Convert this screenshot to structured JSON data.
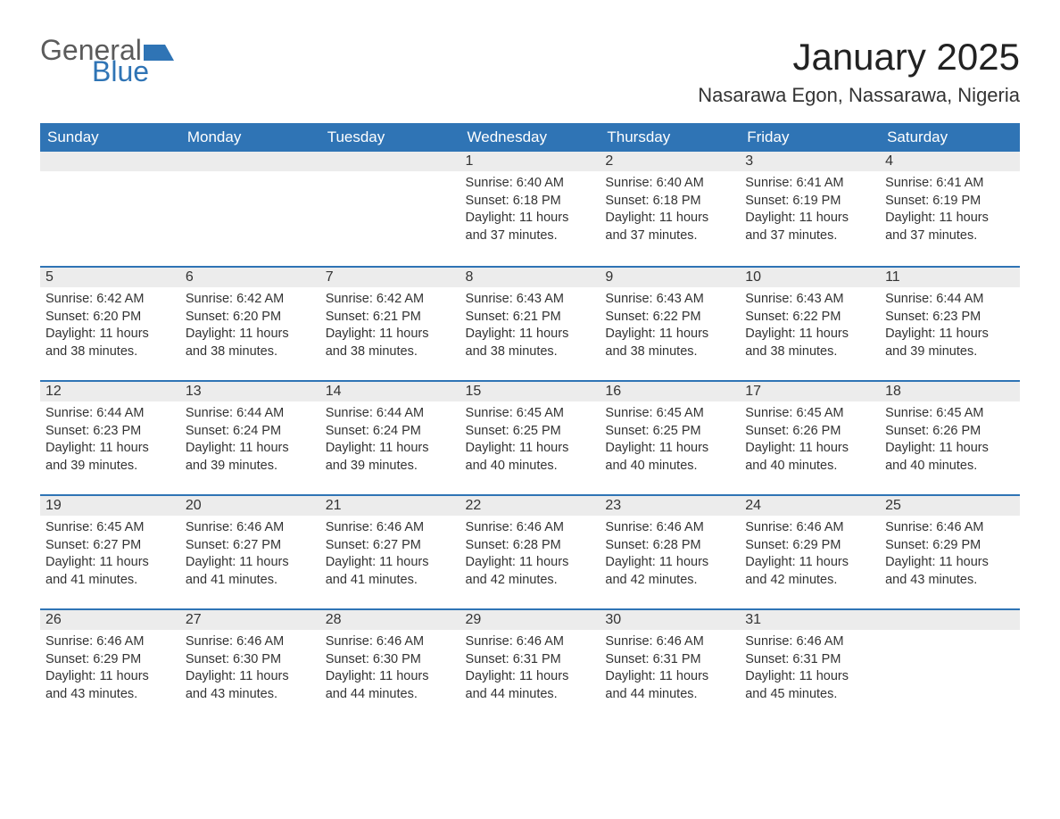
{
  "logo": {
    "text1": "General",
    "text2": "Blue",
    "color1": "#5b5b5b",
    "color2": "#2f74b5"
  },
  "title": "January 2025",
  "location": "Nasarawa Egon, Nassarawa, Nigeria",
  "colors": {
    "header_bg": "#2f74b5",
    "header_text": "#ffffff",
    "daynum_bg": "#ececec",
    "row_border": "#2f74b5",
    "body_text": "#333333",
    "background": "#ffffff"
  },
  "weekdays": [
    "Sunday",
    "Monday",
    "Tuesday",
    "Wednesday",
    "Thursday",
    "Friday",
    "Saturday"
  ],
  "weeks": [
    [
      null,
      null,
      null,
      {
        "n": "1",
        "sr": "6:40 AM",
        "ss": "6:18 PM",
        "dh": "11",
        "dm": "37"
      },
      {
        "n": "2",
        "sr": "6:40 AM",
        "ss": "6:18 PM",
        "dh": "11",
        "dm": "37"
      },
      {
        "n": "3",
        "sr": "6:41 AM",
        "ss": "6:19 PM",
        "dh": "11",
        "dm": "37"
      },
      {
        "n": "4",
        "sr": "6:41 AM",
        "ss": "6:19 PM",
        "dh": "11",
        "dm": "37"
      }
    ],
    [
      {
        "n": "5",
        "sr": "6:42 AM",
        "ss": "6:20 PM",
        "dh": "11",
        "dm": "38"
      },
      {
        "n": "6",
        "sr": "6:42 AM",
        "ss": "6:20 PM",
        "dh": "11",
        "dm": "38"
      },
      {
        "n": "7",
        "sr": "6:42 AM",
        "ss": "6:21 PM",
        "dh": "11",
        "dm": "38"
      },
      {
        "n": "8",
        "sr": "6:43 AM",
        "ss": "6:21 PM",
        "dh": "11",
        "dm": "38"
      },
      {
        "n": "9",
        "sr": "6:43 AM",
        "ss": "6:22 PM",
        "dh": "11",
        "dm": "38"
      },
      {
        "n": "10",
        "sr": "6:43 AM",
        "ss": "6:22 PM",
        "dh": "11",
        "dm": "38"
      },
      {
        "n": "11",
        "sr": "6:44 AM",
        "ss": "6:23 PM",
        "dh": "11",
        "dm": "39"
      }
    ],
    [
      {
        "n": "12",
        "sr": "6:44 AM",
        "ss": "6:23 PM",
        "dh": "11",
        "dm": "39"
      },
      {
        "n": "13",
        "sr": "6:44 AM",
        "ss": "6:24 PM",
        "dh": "11",
        "dm": "39"
      },
      {
        "n": "14",
        "sr": "6:44 AM",
        "ss": "6:24 PM",
        "dh": "11",
        "dm": "39"
      },
      {
        "n": "15",
        "sr": "6:45 AM",
        "ss": "6:25 PM",
        "dh": "11",
        "dm": "40"
      },
      {
        "n": "16",
        "sr": "6:45 AM",
        "ss": "6:25 PM",
        "dh": "11",
        "dm": "40"
      },
      {
        "n": "17",
        "sr": "6:45 AM",
        "ss": "6:26 PM",
        "dh": "11",
        "dm": "40"
      },
      {
        "n": "18",
        "sr": "6:45 AM",
        "ss": "6:26 PM",
        "dh": "11",
        "dm": "40"
      }
    ],
    [
      {
        "n": "19",
        "sr": "6:45 AM",
        "ss": "6:27 PM",
        "dh": "11",
        "dm": "41"
      },
      {
        "n": "20",
        "sr": "6:46 AM",
        "ss": "6:27 PM",
        "dh": "11",
        "dm": "41"
      },
      {
        "n": "21",
        "sr": "6:46 AM",
        "ss": "6:27 PM",
        "dh": "11",
        "dm": "41"
      },
      {
        "n": "22",
        "sr": "6:46 AM",
        "ss": "6:28 PM",
        "dh": "11",
        "dm": "42"
      },
      {
        "n": "23",
        "sr": "6:46 AM",
        "ss": "6:28 PM",
        "dh": "11",
        "dm": "42"
      },
      {
        "n": "24",
        "sr": "6:46 AM",
        "ss": "6:29 PM",
        "dh": "11",
        "dm": "42"
      },
      {
        "n": "25",
        "sr": "6:46 AM",
        "ss": "6:29 PM",
        "dh": "11",
        "dm": "43"
      }
    ],
    [
      {
        "n": "26",
        "sr": "6:46 AM",
        "ss": "6:29 PM",
        "dh": "11",
        "dm": "43"
      },
      {
        "n": "27",
        "sr": "6:46 AM",
        "ss": "6:30 PM",
        "dh": "11",
        "dm": "43"
      },
      {
        "n": "28",
        "sr": "6:46 AM",
        "ss": "6:30 PM",
        "dh": "11",
        "dm": "44"
      },
      {
        "n": "29",
        "sr": "6:46 AM",
        "ss": "6:31 PM",
        "dh": "11",
        "dm": "44"
      },
      {
        "n": "30",
        "sr": "6:46 AM",
        "ss": "6:31 PM",
        "dh": "11",
        "dm": "44"
      },
      {
        "n": "31",
        "sr": "6:46 AM",
        "ss": "6:31 PM",
        "dh": "11",
        "dm": "45"
      },
      null
    ]
  ],
  "labels": {
    "sunrise": "Sunrise:",
    "sunset": "Sunset:",
    "daylight": "Daylight:",
    "hours": "hours",
    "and": "and",
    "minutes": "minutes."
  }
}
